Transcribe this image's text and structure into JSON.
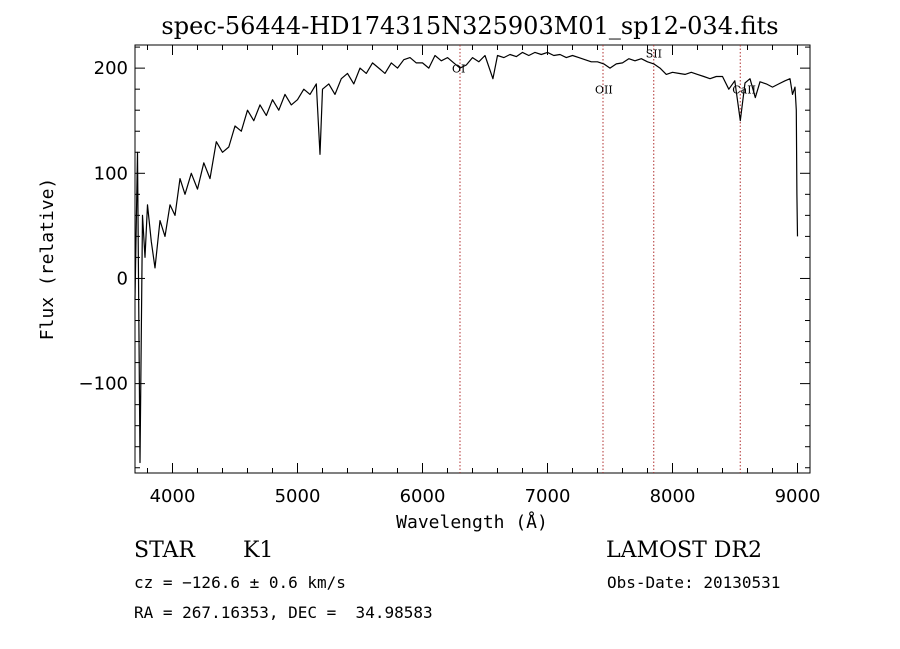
{
  "chart_data": {
    "type": "line",
    "title": "spec-56444-HD174315N325903M01_sp12-034.fits",
    "xlabel": "Wavelength (Å)",
    "ylabel": "Flux (relative)",
    "xlim": [
      3700,
      9100
    ],
    "ylim": [
      -185,
      222
    ],
    "x_ticks": [
      4000,
      5000,
      6000,
      7000,
      8000,
      9000
    ],
    "x_tick_labels": [
      "4000",
      "5000",
      "6000",
      "7000",
      "8000",
      "9000"
    ],
    "y_ticks": [
      -100,
      0,
      100,
      200
    ],
    "y_tick_labels": [
      "−100",
      "0",
      "100",
      "200"
    ],
    "grid": false,
    "series": [
      {
        "x": [
          3700,
          3720,
          3740,
          3760,
          3780,
          3800,
          3830,
          3860,
          3900,
          3940,
          3980,
          4020,
          4060,
          4100,
          4150,
          4200,
          4250,
          4300,
          4350,
          4400,
          4450,
          4500,
          4550,
          4600,
          4650,
          4700,
          4750,
          4800,
          4850,
          4900,
          4950,
          5000,
          5050,
          5100,
          5150,
          5180,
          5200,
          5250,
          5300,
          5350,
          5400,
          5450,
          5500,
          5550,
          5600,
          5650,
          5700,
          5750,
          5800,
          5850,
          5900,
          5950,
          6000,
          6050,
          6100,
          6150,
          6200,
          6250,
          6300,
          6350,
          6400,
          6450,
          6500,
          6563,
          6600,
          6650,
          6700,
          6750,
          6800,
          6850,
          6900,
          6950,
          7000,
          7050,
          7100,
          7150,
          7200,
          7250,
          7300,
          7350,
          7400,
          7450,
          7500,
          7550,
          7600,
          7650,
          7700,
          7750,
          7800,
          7850,
          7900,
          7950,
          8000,
          8050,
          8100,
          8150,
          8200,
          8250,
          8300,
          8350,
          8400,
          8450,
          8498,
          8542,
          8580,
          8620,
          8662,
          8700,
          8750,
          8800,
          8850,
          8900,
          8940,
          8960,
          8980,
          8990,
          8995,
          9000
        ],
        "y": [
          -20,
          120,
          -175,
          60,
          20,
          70,
          35,
          10,
          55,
          40,
          70,
          60,
          95,
          80,
          100,
          85,
          110,
          95,
          130,
          120,
          125,
          145,
          140,
          160,
          150,
          165,
          155,
          170,
          160,
          175,
          165,
          170,
          180,
          175,
          185,
          118,
          180,
          185,
          175,
          190,
          195,
          185,
          200,
          195,
          205,
          200,
          195,
          205,
          200,
          208,
          210,
          205,
          205,
          200,
          212,
          207,
          210,
          205,
          200,
          203,
          210,
          206,
          212,
          190,
          212,
          210,
          213,
          211,
          215,
          212,
          215,
          213,
          215,
          212,
          213,
          210,
          212,
          210,
          208,
          206,
          206,
          204,
          200,
          204,
          205,
          209,
          207,
          209,
          206,
          204,
          200,
          194,
          196,
          195,
          194,
          196,
          194,
          192,
          190,
          192,
          192,
          180,
          188,
          150,
          186,
          190,
          172,
          187,
          185,
          182,
          185,
          188,
          190,
          175,
          182,
          160,
          80,
          40
        ]
      }
    ],
    "vlines": [
      {
        "x": 6300,
        "label": "OI",
        "label_y": 196
      },
      {
        "x": 7444,
        "label": "OII",
        "label_y": 176
      },
      {
        "x": 7850,
        "label": "SII",
        "label_y": 210
      },
      {
        "x": 8542,
        "label": "CaII",
        "label_y": 176
      }
    ]
  },
  "info": {
    "class_label": "STAR",
    "subclass_label": "K1",
    "survey": "LAMOST DR2",
    "cz_line": "cz = −126.6 ± 0.6 km/s",
    "obs_date": "Obs-Date: 20130531",
    "radec_line": "RA = 267.16353, DEC =  34.98583"
  },
  "colors": {
    "spectrum": "#000000",
    "marker_lines": "#b03030",
    "axes": "#000000",
    "background": "#ffffff"
  }
}
